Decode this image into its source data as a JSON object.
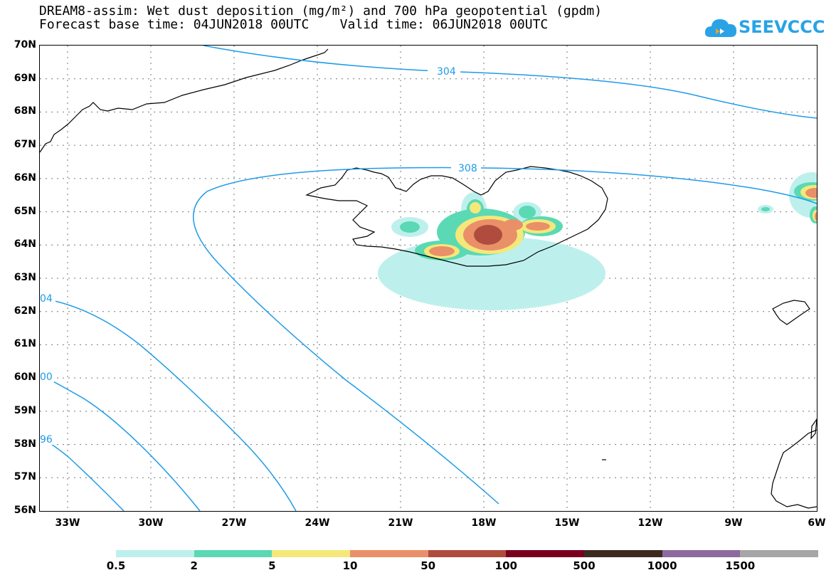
{
  "title": {
    "line1": "DREAM8-assim: Wet dust deposition (mg/m²) and 700 hPa geopotential (gpdm)",
    "line2": "Forecast base time: 04JUN2018 00UTC    Valid time: 06JUN2018 00UTC"
  },
  "logo": {
    "text": "SEEVCCC",
    "icon": "cloud-icon",
    "color": "#29a3e6"
  },
  "map": {
    "lat_labels": [
      "70N",
      "69N",
      "68N",
      "67N",
      "66N",
      "65N",
      "64N",
      "63N",
      "62N",
      "61N",
      "60N",
      "59N",
      "58N",
      "57N",
      "56N"
    ],
    "lon_labels": [
      "33W",
      "30W",
      "27W",
      "24W",
      "21W",
      "18W",
      "15W",
      "12W",
      "9W",
      "6W"
    ],
    "contour_labels": [
      "304",
      "308",
      "04",
      "00",
      "96"
    ],
    "contour_color": "#1e9be8"
  },
  "colorbar": {
    "labels": [
      "0.5",
      "2",
      "5",
      "10",
      "50",
      "100",
      "500",
      "1000",
      "1500"
    ],
    "colors": [
      "#bdf0ec",
      "#5ad9b4",
      "#f4e87a",
      "#e99068",
      "#b04c3e",
      "#7a0020",
      "#3d2a1e",
      "#8d6a9e",
      "#a6a6a6"
    ]
  }
}
